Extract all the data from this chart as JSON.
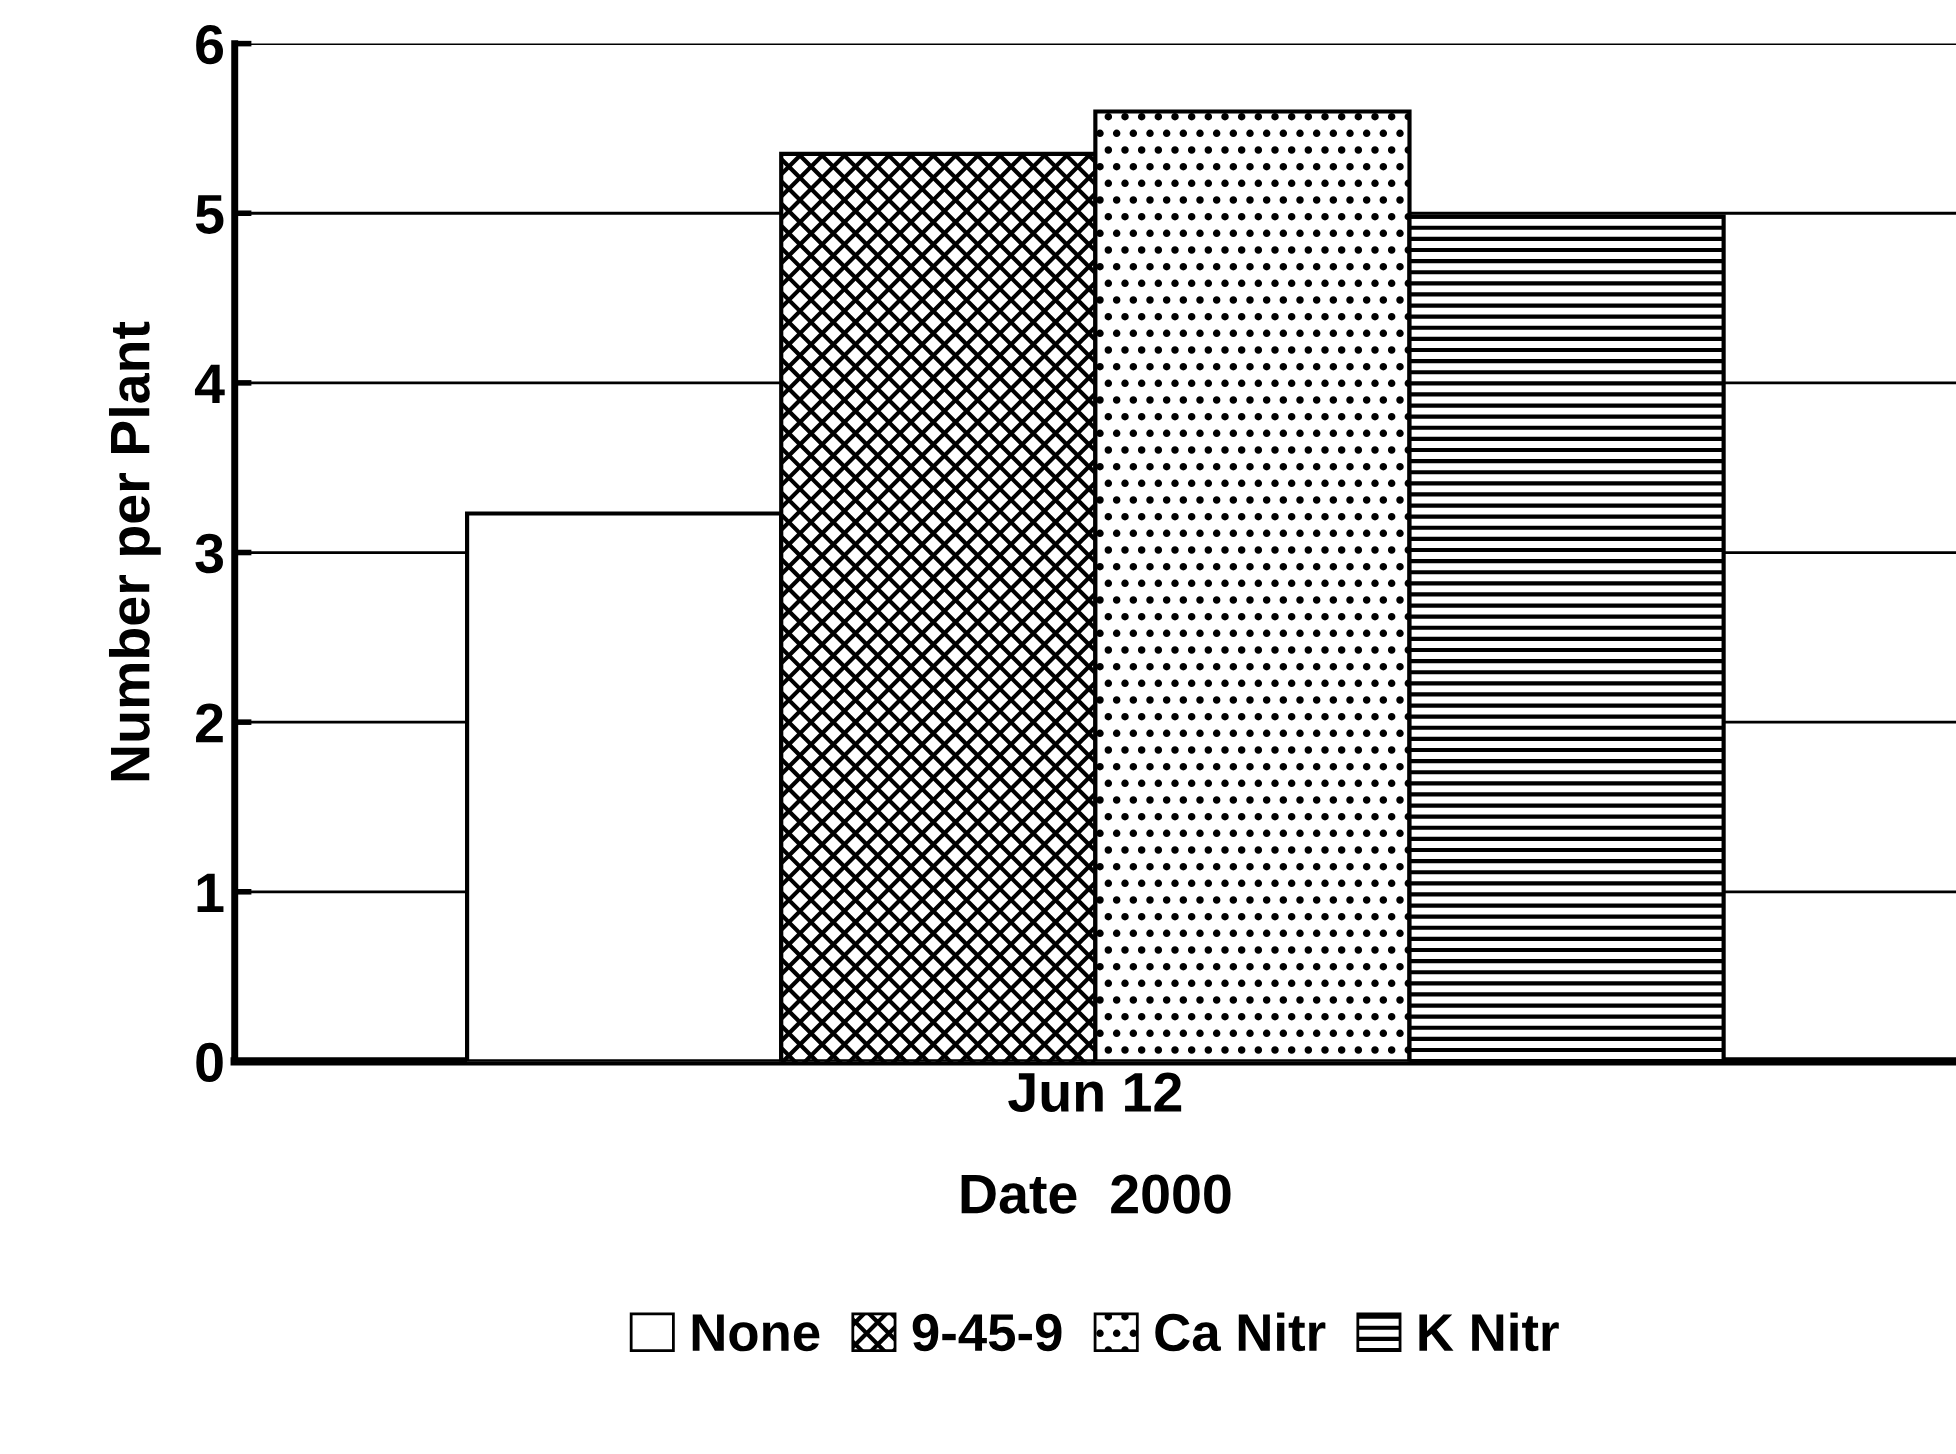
{
  "chart_data": {
    "type": "bar",
    "categories": [
      "Jun 12"
    ],
    "series": [
      {
        "name": "None",
        "color": "#ffffff",
        "values": [
          3.23
        ]
      },
      {
        "name": "9-45-9",
        "color": "#000000",
        "values": [
          5.35
        ]
      },
      {
        "name": "Ca Nitr",
        "color": "#000000",
        "values": [
          5.6
        ]
      },
      {
        "name": "K Nitr",
        "color": "#000000",
        "values": [
          4.98
        ]
      }
    ],
    "xlabel": "Date  2000",
    "ylabel": "Number per Plant",
    "ylim": [
      0,
      6
    ],
    "yticks": [
      0,
      1,
      2,
      3,
      4,
      5,
      6
    ],
    "grid": "y",
    "legend": "bottom"
  }
}
